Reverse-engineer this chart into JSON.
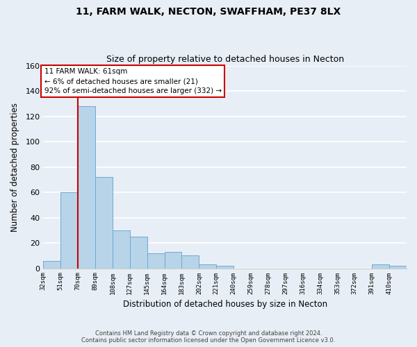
{
  "title": "11, FARM WALK, NECTON, SWAFFHAM, PE37 8LX",
  "subtitle": "Size of property relative to detached houses in Necton",
  "xlabel": "Distribution of detached houses by size in Necton",
  "ylabel": "Number of detached properties",
  "bin_labels": [
    "32sqm",
    "51sqm",
    "70sqm",
    "89sqm",
    "108sqm",
    "127sqm",
    "145sqm",
    "164sqm",
    "183sqm",
    "202sqm",
    "221sqm",
    "240sqm",
    "259sqm",
    "278sqm",
    "297sqm",
    "316sqm",
    "334sqm",
    "353sqm",
    "372sqm",
    "391sqm",
    "410sqm"
  ],
  "bar_values": [
    6,
    60,
    128,
    72,
    30,
    25,
    12,
    13,
    10,
    3,
    2,
    0,
    0,
    0,
    0,
    0,
    0,
    0,
    0,
    3,
    2
  ],
  "bar_color": "#b8d4e8",
  "bar_edge_color": "#6aaad4",
  "ylim": [
    0,
    160
  ],
  "yticks": [
    0,
    20,
    40,
    60,
    80,
    100,
    120,
    140,
    160
  ],
  "annotation_title": "11 FARM WALK: 61sqm",
  "annotation_line1": "← 6% of detached houses are smaller (21)",
  "annotation_line2": "92% of semi-detached houses are larger (332) →",
  "annotation_box_color": "#ffffff",
  "annotation_box_edge": "#cc0000",
  "vline_color": "#cc0000",
  "footer1": "Contains HM Land Registry data © Crown copyright and database right 2024.",
  "footer2": "Contains public sector information licensed under the Open Government Licence v3.0.",
  "background_color": "#e8eef5",
  "plot_background": "#e8eef5",
  "grid_color": "#ffffff",
  "title_fontsize": 10,
  "subtitle_fontsize": 9
}
